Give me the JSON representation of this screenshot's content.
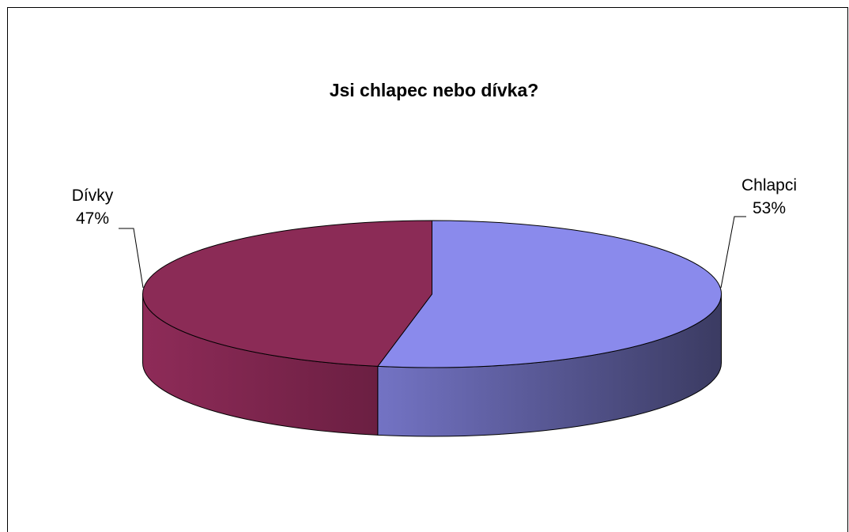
{
  "chart_data": {
    "type": "pie",
    "style": "3d",
    "title": "Jsi chlapec nebo dívka?",
    "categories": [
      "Chlapci",
      "Dívky"
    ],
    "values": [
      53,
      47
    ],
    "labels": [
      {
        "name": "Chlapci",
        "percent": "53%"
      },
      {
        "name": "Dívky",
        "percent": "47%"
      }
    ],
    "colors": {
      "chlapci_top": "#8a8aec",
      "chlapci_side_light": "#7373c4",
      "chlapci_side_dark": "#3b3b62",
      "divky_top": "#8b2b56",
      "divky_side_light": "#8e2b58",
      "divky_side_dark": "#6b1f42"
    },
    "legend": "none"
  }
}
